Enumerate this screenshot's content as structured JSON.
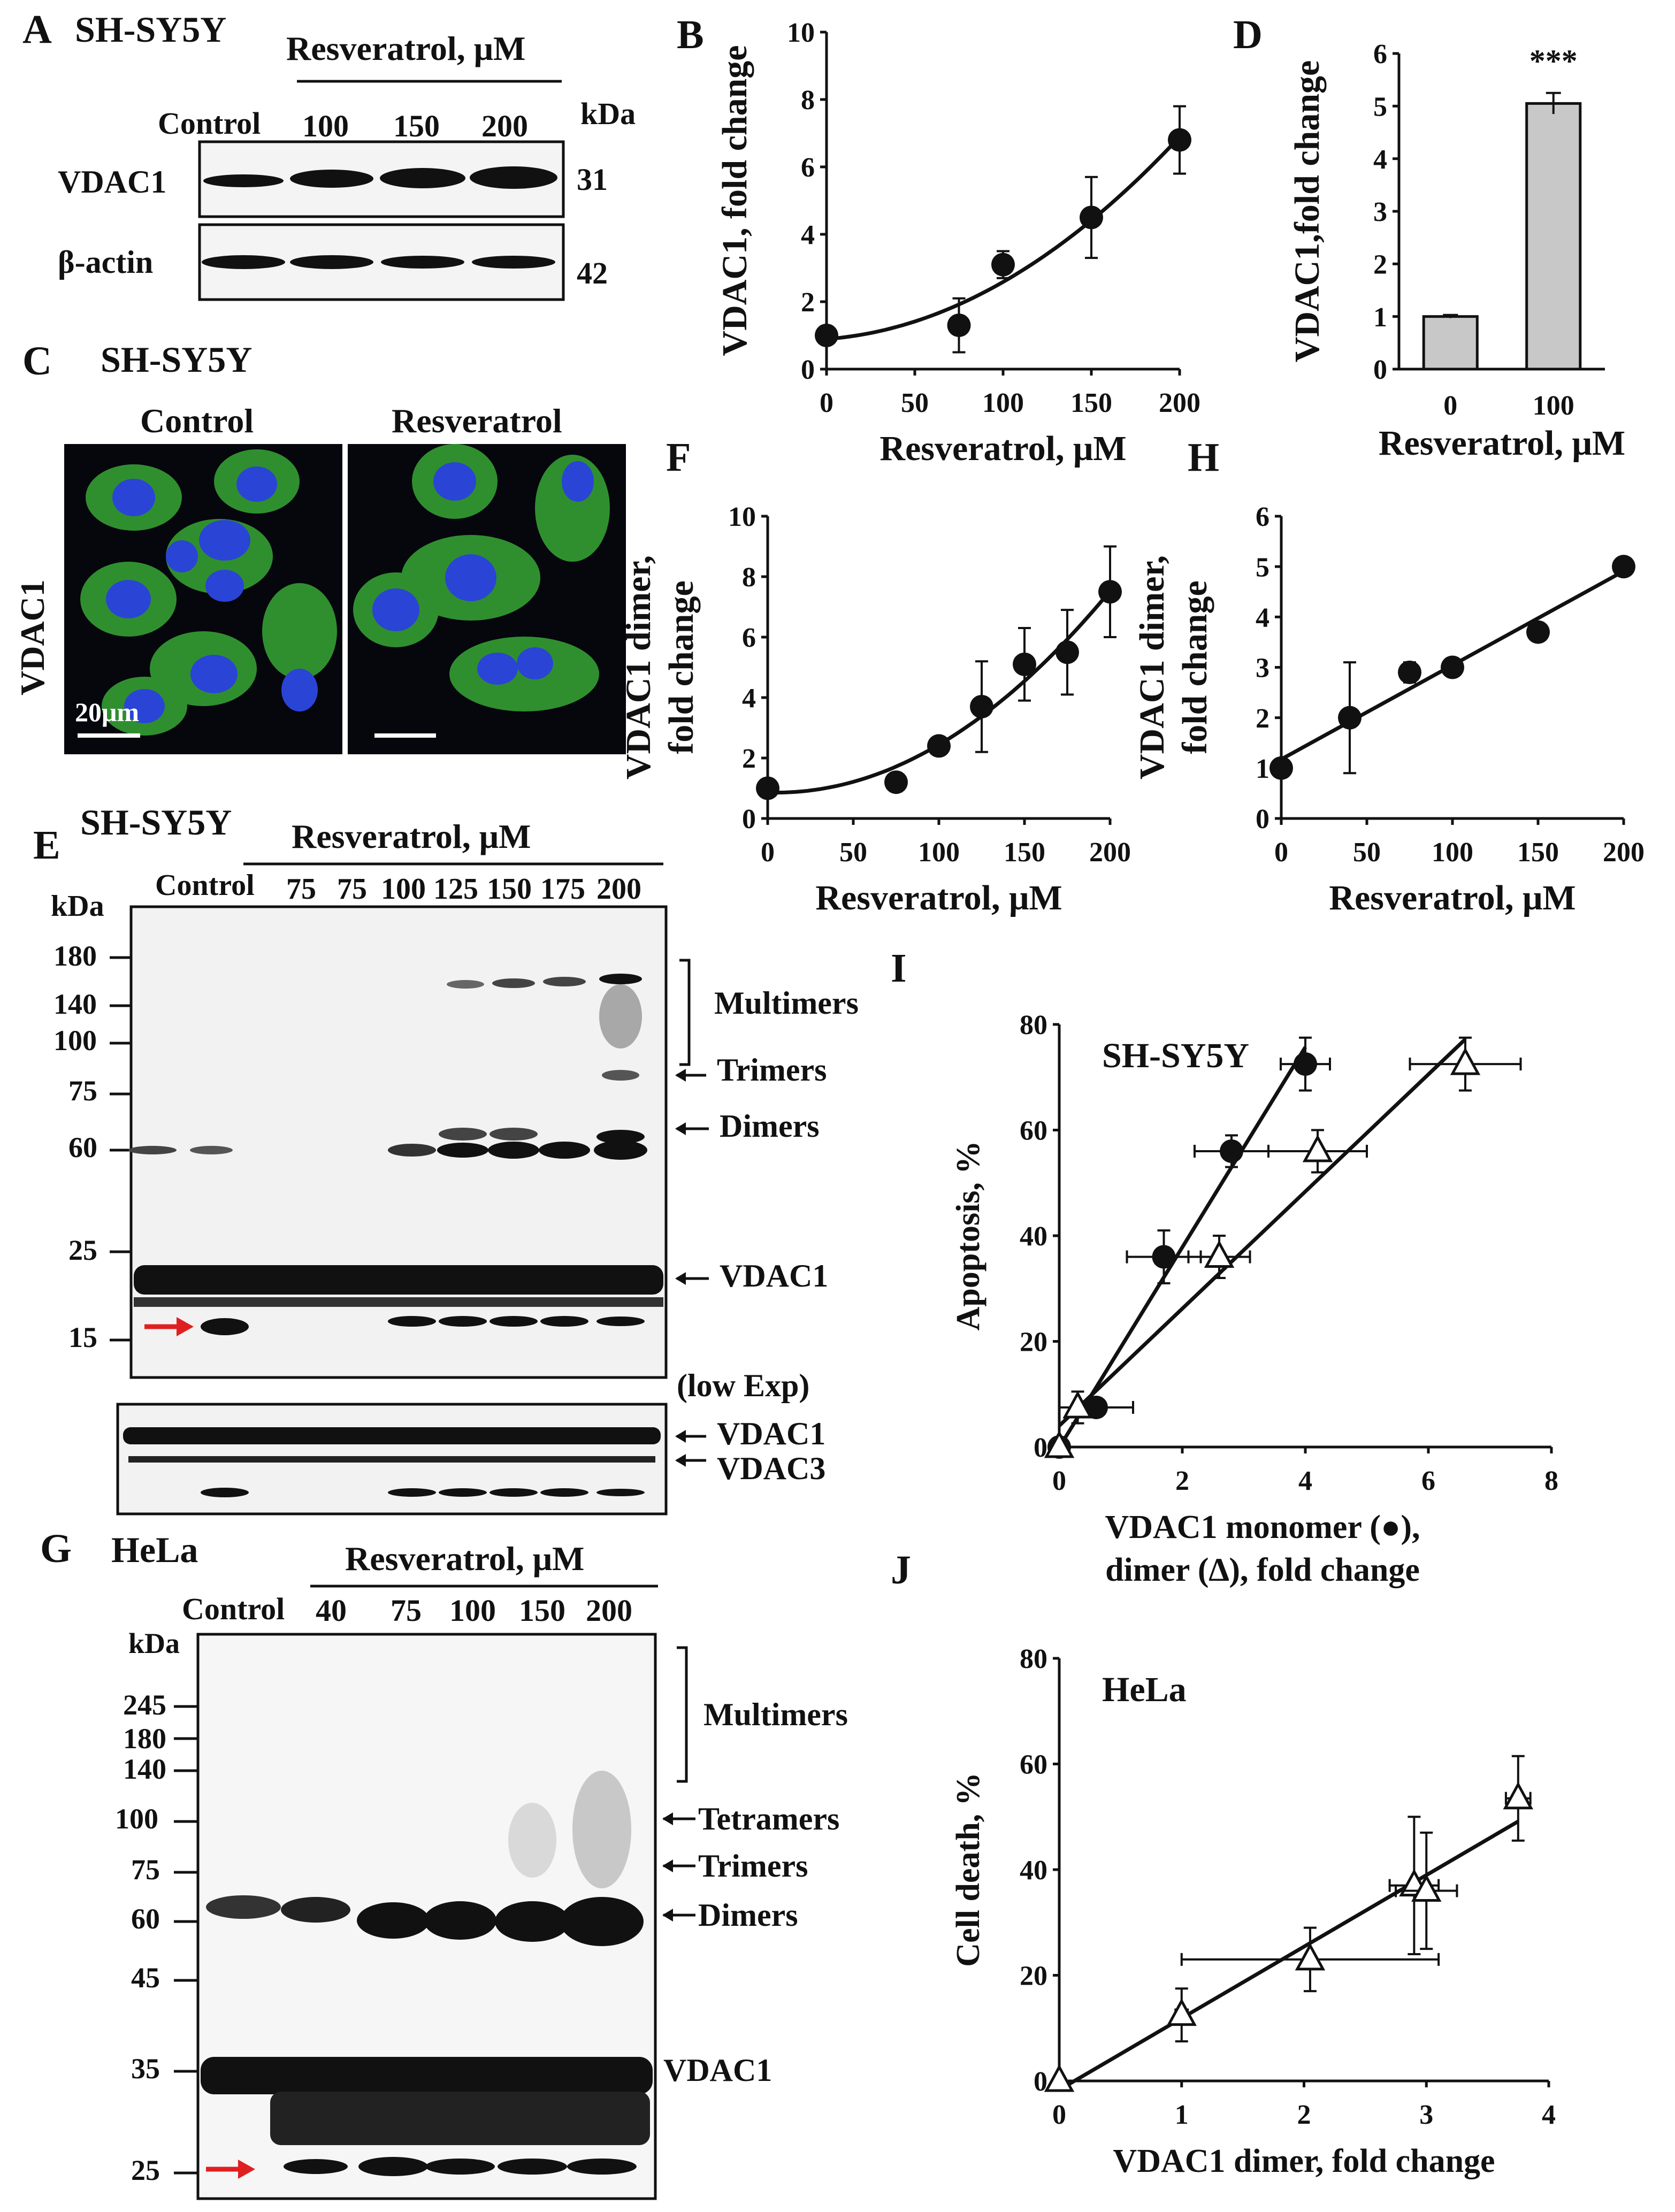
{
  "panels": {
    "A": {
      "letter": "A",
      "cell_line": "SH-SY5Y",
      "treatment": "Resveratrol, μM",
      "lanes": [
        "Control",
        "100",
        "150",
        "200"
      ],
      "kda_label": "kDa",
      "rows": [
        {
          "label": "VDAC1",
          "kda": "31"
        },
        {
          "label": "β-actin",
          "kda": "42"
        }
      ]
    },
    "C": {
      "letter": "C",
      "cell_line": "SH-SY5Y",
      "cond1": "Control",
      "cond2": "Resveratrol",
      "stain": "VDAC1",
      "scale": "20μm"
    },
    "E": {
      "letter": "E",
      "cell_line": "SH-SY5Y",
      "treatment": "Resveratrol, μM",
      "lanes": [
        "Control",
        "75",
        "75",
        "100",
        "125",
        "150",
        "175",
        "200"
      ],
      "kda_label": "kDa",
      "markers": [
        "180",
        "140",
        "100",
        "75",
        "60",
        "25",
        "15"
      ],
      "bands": [
        "Multimers",
        "Trimers",
        "Dimers",
        "VDAC1"
      ],
      "low_exp": "(low Exp)",
      "low_bands": [
        "VDAC1",
        "VDAC3"
      ]
    },
    "G": {
      "letter": "G",
      "cell_line": "HeLa",
      "treatment": "Resveratrol, μM",
      "lanes": [
        "Control",
        "40",
        "75",
        "100",
        "150",
        "200"
      ],
      "kda_label": "kDa",
      "markers": [
        "245",
        "180",
        "140",
        "100",
        "75",
        "60",
        "45",
        "35",
        "25"
      ],
      "bands": [
        "Multimers",
        "Tetramers",
        "Trimers",
        "Dimers",
        "VDAC1"
      ]
    }
  },
  "chart_data": [
    {
      "id": "B",
      "type": "scatter",
      "letter": "B",
      "title": "",
      "xlabel": "Resveratrol, μM",
      "ylabel": "VDAC1, fold change",
      "xlim": [
        0,
        200
      ],
      "ylim": [
        0,
        10
      ],
      "xticks": [
        "0",
        "50",
        "100",
        "150",
        "200"
      ],
      "yticks": [
        "0",
        "2",
        "4",
        "6",
        "8",
        "10"
      ],
      "x": [
        0,
        75,
        100,
        150,
        200
      ],
      "y": [
        1.0,
        1.3,
        3.1,
        4.5,
        6.8
      ],
      "yerr": [
        0.1,
        0.8,
        0.4,
        1.2,
        1.0
      ],
      "trend": "polynomial"
    },
    {
      "id": "D",
      "type": "bar",
      "letter": "D",
      "xlabel": "Resveratrol, μM",
      "ylabel": "VDAC1,fold change",
      "categories": [
        "0",
        "100"
      ],
      "values": [
        1.0,
        5.05
      ],
      "yerr": [
        0.03,
        0.2
      ],
      "ylim": [
        0,
        6
      ],
      "yticks": [
        "0",
        "1",
        "2",
        "3",
        "4",
        "5",
        "6"
      ],
      "annotation": "***"
    },
    {
      "id": "F",
      "type": "scatter",
      "letter": "F",
      "xlabel": "Resveratrol, μM",
      "ylabel_line1": "VDAC1 dimer,",
      "ylabel_line2": "fold change",
      "xlim": [
        0,
        200
      ],
      "ylim": [
        0,
        10
      ],
      "xticks": [
        "0",
        "50",
        "100",
        "150",
        "200"
      ],
      "yticks": [
        "0",
        "2",
        "4",
        "6",
        "8",
        "10"
      ],
      "x": [
        0,
        75,
        100,
        125,
        150,
        175,
        200
      ],
      "y": [
        1.0,
        1.2,
        2.4,
        3.7,
        5.1,
        5.5,
        7.5
      ],
      "yerr": [
        0.1,
        0.1,
        0.2,
        1.5,
        1.2,
        1.4,
        1.5
      ],
      "trend": "polynomial"
    },
    {
      "id": "H",
      "type": "scatter",
      "letter": "H",
      "xlabel": "Resveratrol, μM",
      "ylabel_line1": "VDAC1 dimer,",
      "ylabel_line2": "fold change",
      "xlim": [
        0,
        200
      ],
      "ylim": [
        0,
        6
      ],
      "xticks": [
        "0",
        "50",
        "100",
        "150",
        "200"
      ],
      "yticks": [
        "0",
        "1",
        "2",
        "3",
        "4",
        "5",
        "6"
      ],
      "x": [
        0,
        40,
        75,
        100,
        150,
        200
      ],
      "y": [
        1.0,
        2.0,
        2.9,
        3.0,
        3.7,
        5.0
      ],
      "yerr": [
        0.05,
        1.1,
        0.2,
        0.15,
        0.1,
        0.05
      ],
      "trend": "linear"
    },
    {
      "id": "I",
      "type": "scatter",
      "letter": "I",
      "title": "SH-SY5Y",
      "xlabel_line1": "VDAC1 monomer (●),",
      "xlabel_line2": "dimer (∆), fold change",
      "ylabel": "Apoptosis, %",
      "xlim": [
        0,
        8
      ],
      "ylim": [
        0,
        80
      ],
      "xticks": [
        "0",
        "2",
        "4",
        "6",
        "8"
      ],
      "yticks": [
        "0",
        "20",
        "40",
        "60",
        "80"
      ],
      "series": [
        {
          "name": "monomer",
          "marker": "circle",
          "x": [
            0,
            0.6,
            1.7,
            2.8,
            4.0
          ],
          "y": [
            0,
            7.5,
            36,
            56,
            72.5
          ],
          "xerr": [
            0.05,
            0.6,
            0.6,
            0.6,
            0.4
          ],
          "yerr": [
            0.5,
            1,
            5,
            3,
            5
          ]
        },
        {
          "name": "dimer",
          "marker": "triangle",
          "x": [
            0,
            0.3,
            2.6,
            4.2,
            6.6
          ],
          "y": [
            0,
            7.5,
            36,
            56,
            72.5
          ],
          "xerr": [
            0.05,
            0.3,
            0.5,
            0.8,
            0.9
          ],
          "yerr": [
            0.5,
            3,
            4,
            4,
            5
          ]
        }
      ]
    },
    {
      "id": "J",
      "type": "scatter",
      "letter": "J",
      "title": "HeLa",
      "xlabel": "VDAC1 dimer, fold change",
      "ylabel": "Cell death, %",
      "xlim": [
        0,
        4
      ],
      "ylim": [
        0,
        80
      ],
      "xticks": [
        "0",
        "1",
        "2",
        "3",
        "4"
      ],
      "yticks": [
        "0",
        "20",
        "40",
        "60",
        "80"
      ],
      "series": [
        {
          "name": "dimer",
          "marker": "triangle",
          "x": [
            0,
            1.0,
            2.05,
            2.9,
            3.0,
            3.75
          ],
          "y": [
            0,
            12.5,
            23,
            37,
            36,
            53.5
          ],
          "xerr": [
            0.02,
            0.05,
            1.05,
            0.2,
            0.25,
            0.1
          ],
          "yerr": [
            0.5,
            5,
            6,
            13,
            11,
            8
          ]
        }
      ]
    }
  ]
}
